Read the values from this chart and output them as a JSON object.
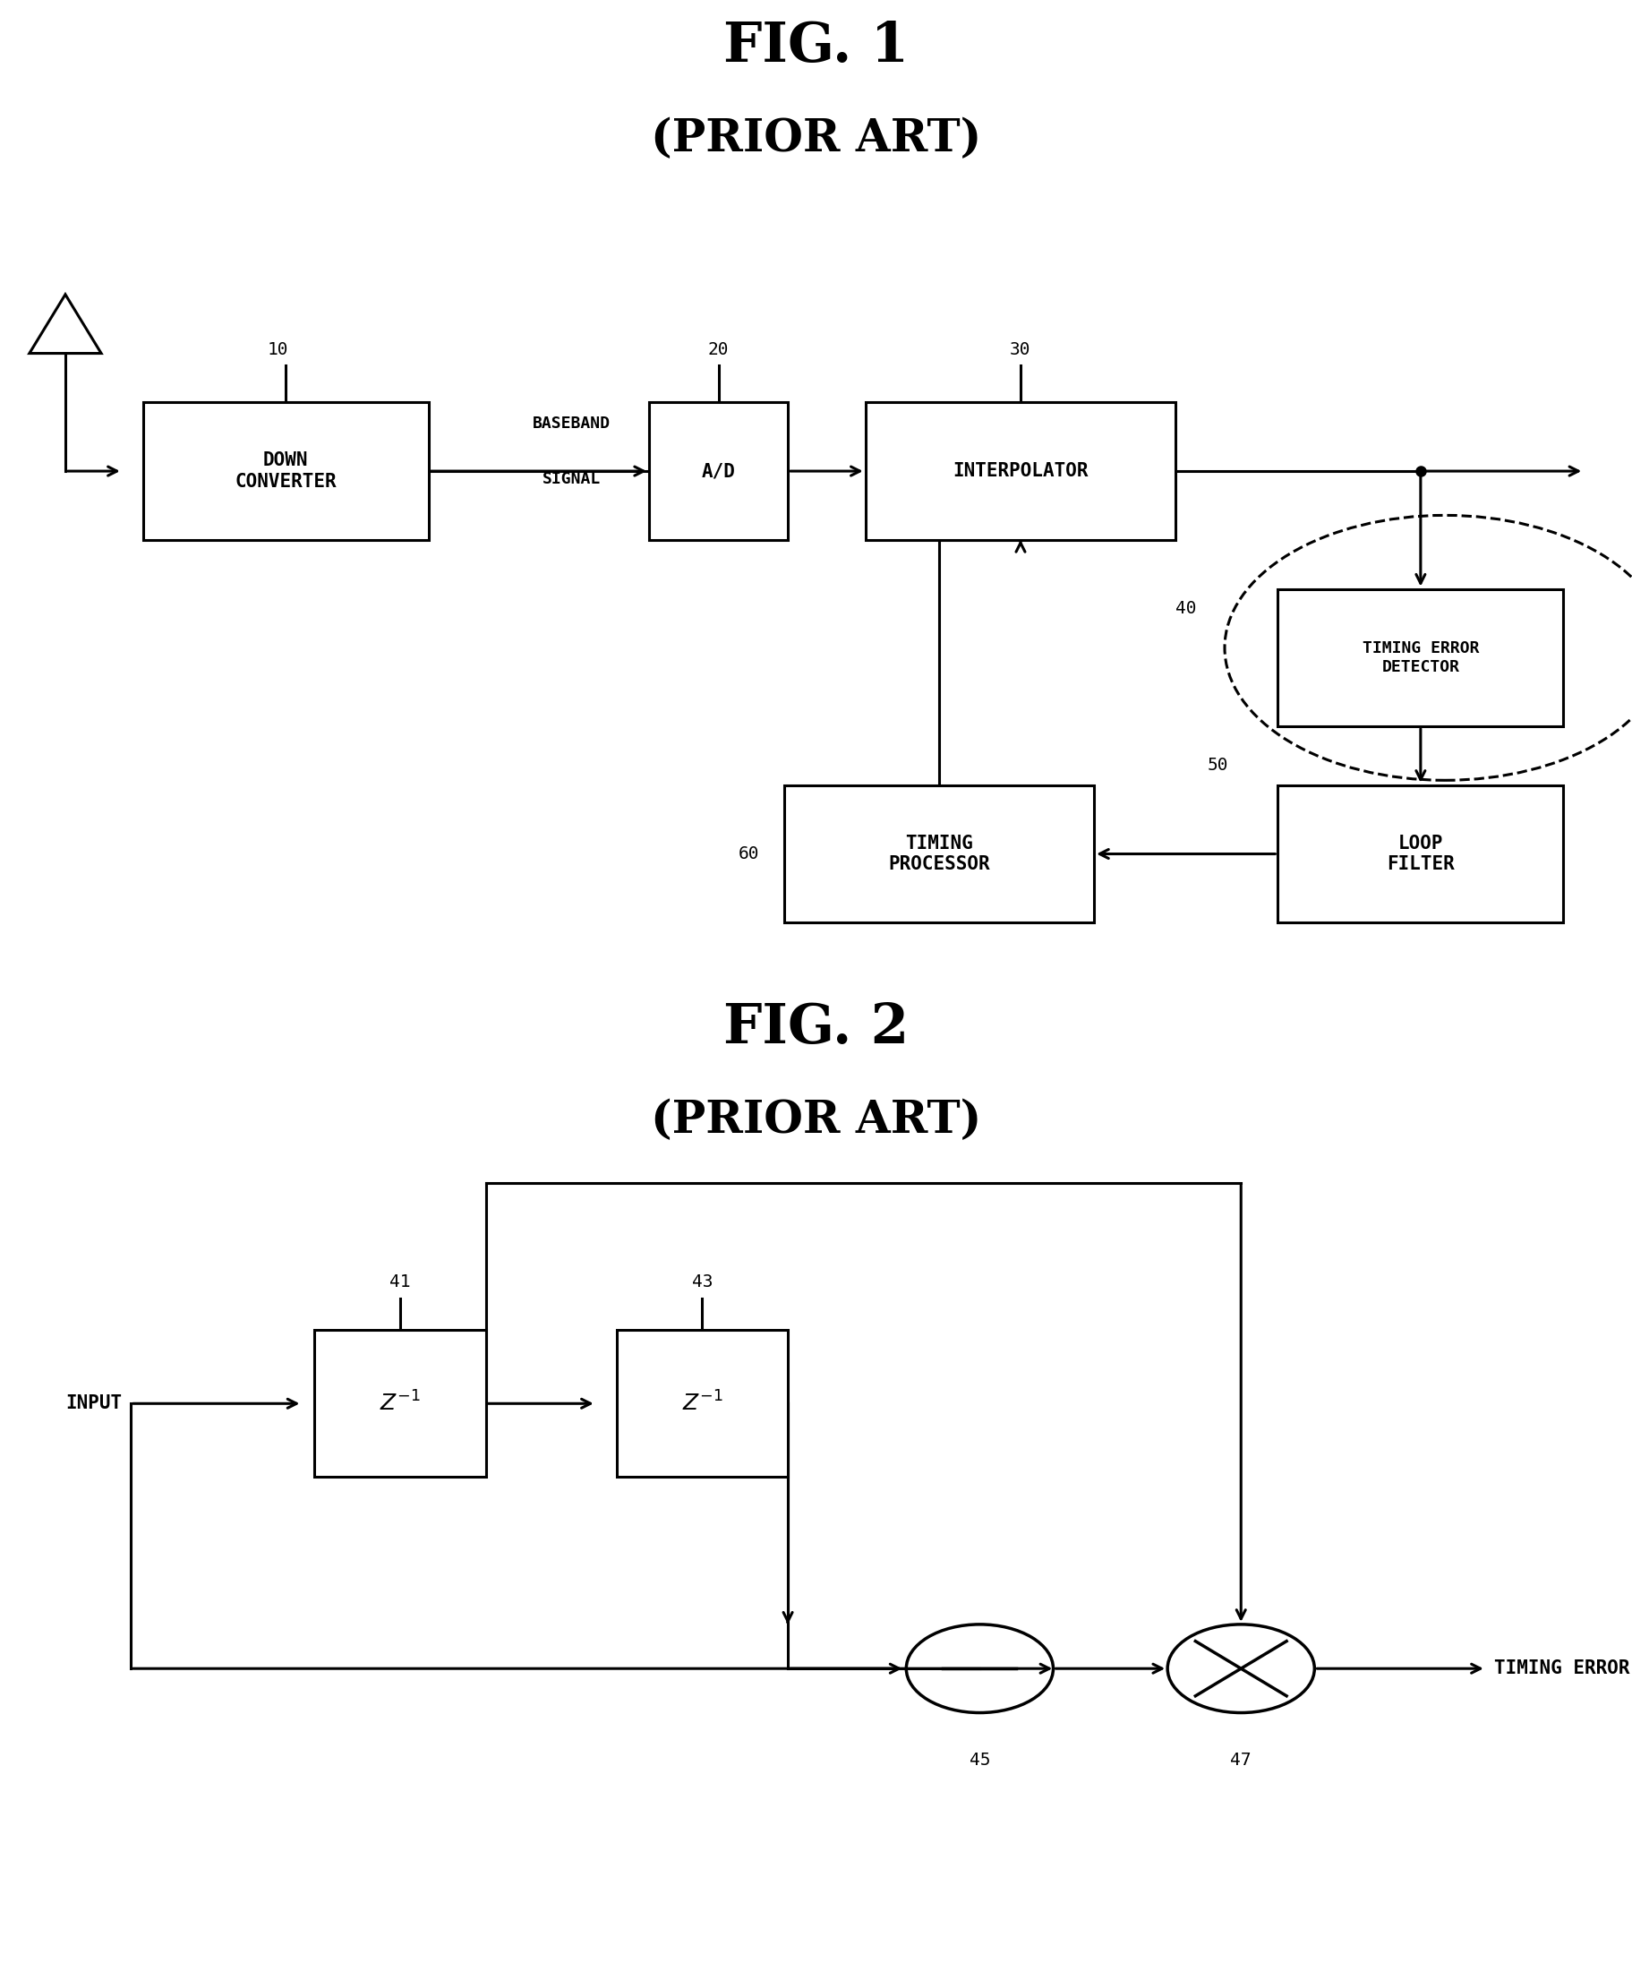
{
  "fig1_title": "FIG. 1",
  "fig1_subtitle": "(PRIOR ART)",
  "fig2_title": "FIG. 2",
  "fig2_subtitle": "(PRIOR ART)",
  "background_color": "#ffffff"
}
